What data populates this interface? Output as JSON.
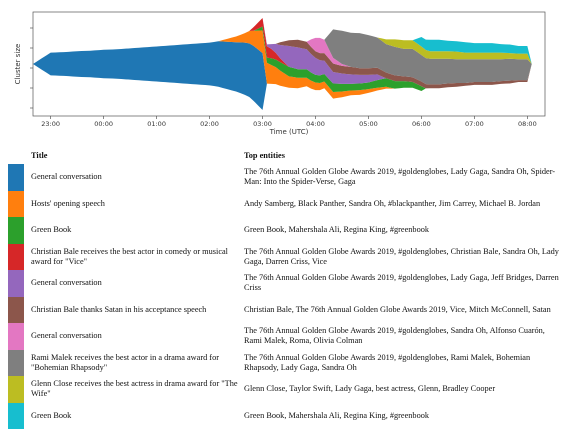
{
  "chart_data": {
    "type": "area",
    "subtype": "streamgraph",
    "ylabel": "Cluster size",
    "xlabel": "Time (UTC)",
    "x_ticks": [
      "23:00",
      "00:00",
      "01:00",
      "02:00",
      "03:00",
      "04:00",
      "05:00",
      "06:00",
      "07:00",
      "08:00"
    ],
    "xlim": [
      "22:40",
      "08:20"
    ],
    "grid": false,
    "series": [
      {
        "name": "General conversation",
        "color": "#1f77b4",
        "x": [
          "22:40",
          "23:00",
          "23:15",
          "23:30",
          "23:45",
          "00:00",
          "00:15",
          "00:30",
          "00:45",
          "01:00",
          "01:15",
          "01:30",
          "01:45",
          "02:00",
          "02:10",
          "02:20",
          "02:30",
          "02:40",
          "02:50",
          "03:00",
          "03:05"
        ],
        "values": [
          0,
          24,
          25,
          27,
          28,
          30,
          31,
          33,
          35,
          37,
          39,
          41,
          43,
          45,
          48,
          50,
          52,
          55,
          58,
          60,
          0
        ]
      },
      {
        "name": "Hosts' opening speech",
        "color": "#ff7f0e",
        "x": [
          "02:10",
          "02:20",
          "02:30",
          "02:40",
          "02:50",
          "03:00",
          "03:10",
          "03:20",
          "03:30",
          "03:40",
          "03:50",
          "04:00",
          "04:10",
          "04:20",
          "04:30",
          "04:40",
          "04:50",
          "05:00",
          "05:10",
          "05:20",
          "05:30"
        ],
        "values": [
          0,
          3,
          6,
          10,
          16,
          24,
          20,
          16,
          12,
          11,
          9,
          8,
          7,
          7,
          6,
          5,
          5,
          4,
          3,
          2,
          0
        ]
      },
      {
        "name": "Green Book",
        "color": "#2ca02c",
        "x": [
          "02:50",
          "03:00",
          "03:10",
          "03:20",
          "03:30",
          "03:40",
          "03:50",
          "04:00",
          "04:10",
          "04:20",
          "04:30",
          "04:40",
          "04:50",
          "05:00",
          "05:10",
          "05:20",
          "05:30",
          "05:40",
          "05:50",
          "06:00"
        ],
        "values": [
          0,
          4,
          7,
          9,
          10,
          9,
          9,
          8,
          8,
          9,
          8,
          7,
          7,
          7,
          8,
          9,
          8,
          7,
          6,
          5
        ]
      },
      {
        "name": "Christian Bale receives the best actor in comedy or musical award for \"Vice\"",
        "color": "#d62728",
        "x": [
          "02:45",
          "02:50",
          "03:00",
          "03:05",
          "03:10",
          "03:15",
          "03:20",
          "03:30"
        ],
        "values": [
          0,
          4,
          9,
          12,
          10,
          7,
          4,
          0
        ]
      },
      {
        "name": "General conversation",
        "color": "#9467bd",
        "x": [
          "03:00",
          "03:05",
          "03:10",
          "03:20",
          "03:30",
          "03:40",
          "03:50",
          "04:00",
          "04:10",
          "04:20",
          "04:30",
          "04:40",
          "04:50",
          "05:00",
          "05:10",
          "05:20"
        ],
        "values": [
          0,
          2,
          5,
          14,
          22,
          23,
          21,
          18,
          14,
          12,
          11,
          10,
          9,
          8,
          6,
          0
        ]
      },
      {
        "name": "Christian Bale thanks Satan in his acceptance speech",
        "color": "#8c564b",
        "x": [
          "03:15",
          "03:20",
          "03:30",
          "03:40",
          "03:50",
          "04:00",
          "04:10",
          "04:20",
          "04:30",
          "04:40",
          "04:50",
          "05:00",
          "05:10",
          "05:20",
          "05:30",
          "05:40",
          "05:50",
          "06:00",
          "06:10",
          "06:20",
          "06:30",
          "06:40",
          "06:50",
          "07:00",
          "07:10",
          "07:20",
          "07:30",
          "07:40",
          "07:50",
          "08:00"
        ],
        "values": [
          0,
          3,
          6,
          8,
          8,
          7,
          8,
          9,
          8,
          8,
          7,
          7,
          7,
          6,
          6,
          5,
          5,
          5,
          4,
          4,
          4,
          4,
          3,
          3,
          3,
          3,
          3,
          3,
          2,
          2
        ]
      },
      {
        "name": "General conversation",
        "color": "#e377c2",
        "x": [
          "03:50",
          "03:55",
          "04:00",
          "04:05",
          "04:10",
          "04:15",
          "04:20",
          "04:30",
          "04:40"
        ],
        "values": [
          0,
          8,
          14,
          16,
          14,
          10,
          6,
          2,
          0
        ]
      },
      {
        "name": "Rami Malek receives the best actor in a drama award for \"Bohemian Rhapsody\"",
        "color": "#7f7f7f",
        "x": [
          "04:10",
          "04:20",
          "04:30",
          "04:40",
          "04:50",
          "05:00",
          "05:10",
          "05:20",
          "05:30",
          "05:40",
          "05:50",
          "06:00",
          "06:10",
          "06:20",
          "06:30",
          "06:40",
          "06:50",
          "07:00",
          "07:10",
          "07:20",
          "07:30",
          "07:40",
          "07:50",
          "08:00"
        ],
        "values": [
          0,
          30,
          35,
          36,
          37,
          35,
          32,
          30,
          30,
          29,
          30,
          28,
          27,
          27,
          26,
          25,
          25,
          24,
          24,
          24,
          23,
          23,
          22,
          22
        ]
      },
      {
        "name": "Glenn Close receives the best actress in drama award for \"The Wife\"",
        "color": "#bcbd22",
        "x": [
          "05:10",
          "05:20",
          "05:30",
          "05:40",
          "05:50",
          "06:00",
          "06:10",
          "06:20",
          "06:30",
          "06:40",
          "06:50",
          "07:00",
          "07:10",
          "07:20",
          "07:30",
          "07:40",
          "07:50",
          "08:00"
        ],
        "values": [
          0,
          5,
          8,
          9,
          9,
          9,
          8,
          8,
          8,
          8,
          7,
          7,
          7,
          7,
          7,
          6,
          6,
          6
        ]
      },
      {
        "name": "Green Book",
        "color": "#17becf",
        "x": [
          "05:50",
          "06:00",
          "06:10",
          "06:20",
          "06:30",
          "06:40",
          "06:50",
          "07:00",
          "07:10",
          "07:20",
          "07:30",
          "07:40",
          "07:50",
          "08:00"
        ],
        "values": [
          0,
          10,
          12,
          12,
          11,
          11,
          11,
          10,
          10,
          10,
          9,
          9,
          8,
          8
        ]
      }
    ]
  },
  "table": {
    "headers": {
      "title": "Title",
      "entities": "Top entities"
    },
    "rows": [
      {
        "color": "#1f77b4",
        "title": "General conversation",
        "entities": "The 76th Annual Golden Globe Awards 2019, #goldenglobes, Lady Gaga, Sandra Oh, Spider-Man: Into the Spider-Verse, Gaga"
      },
      {
        "color": "#ff7f0e",
        "title": "Hosts' opening speech",
        "entities": "Andy Samberg, Black Panther, Sandra Oh, #blackpanther, Jim Carrey, Michael B. Jordan"
      },
      {
        "color": "#2ca02c",
        "title": "Green Book",
        "entities": "Green Book, Mahershala Ali, Regina King, #greenbook"
      },
      {
        "color": "#d62728",
        "title": "Christian Bale receives the best actor in comedy or musical award for \"Vice\"",
        "entities": "The 76th Annual Golden Globe Awards 2019, #goldenglobes, Christian Bale, Sandra Oh, Lady Gaga, Darren Criss, Vice"
      },
      {
        "color": "#9467bd",
        "title": "General conversation",
        "entities": "The 76th Annual Golden Globe Awards 2019, #goldenglobes, Lady Gaga, Jeff Bridges, Darren Criss"
      },
      {
        "color": "#8c564b",
        "title": "Christian Bale thanks Satan in his acceptance speech",
        "entities": "Christian Bale, The 76th Annual Golden Globe Awards 2019, Vice, Mitch McConnell, Satan"
      },
      {
        "color": "#e377c2",
        "title": "General conversation",
        "entities": "The 76th Annual Golden Globe Awards 2019, #goldenglobes, Sandra Oh, Alfonso Cuarón, Rami Malek, Roma, Olivia Colman"
      },
      {
        "color": "#7f7f7f",
        "title": "Rami Malek receives the best actor in a drama award for \"Bohemian Rhapsody\"",
        "entities": "The 76th Annual Golden Globe Awards 2019, #goldenglobes, Rami Malek, Bohemian Rhapsody, Lady Gaga, Sandra Oh"
      },
      {
        "color": "#bcbd22",
        "title": "Glenn Close receives the best actress in drama award for \"The Wife\"",
        "entities": "Glenn Close, Taylor Swift, Lady Gaga, best actress, Glenn, Bradley Cooper"
      },
      {
        "color": "#17becf",
        "title": "Green Book",
        "entities": "Green Book, Mahershala Ali, Regina King, #greenbook"
      }
    ]
  }
}
